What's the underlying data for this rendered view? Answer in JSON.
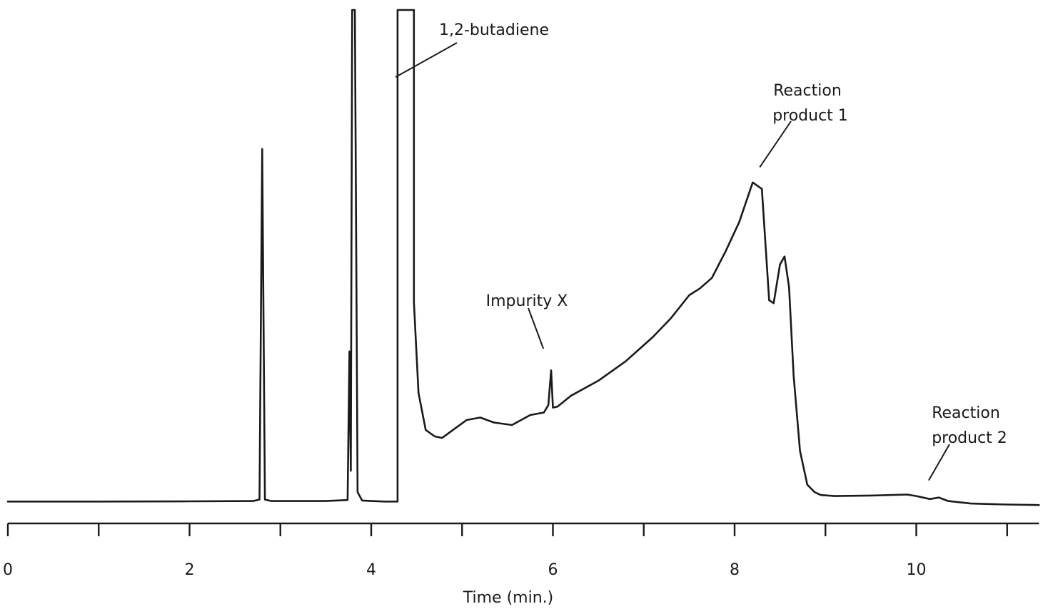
{
  "chart_data": {
    "type": "line",
    "title": "",
    "xlabel": "Time (min.)",
    "ylabel": "",
    "xlim": [
      0,
      11.35
    ],
    "ylim": [
      0,
      100
    ],
    "x_ticks_major": [
      0,
      2,
      4,
      6,
      8,
      10
    ],
    "x_ticks_minor": [
      1,
      3,
      5,
      7,
      9,
      11
    ],
    "grid": false,
    "series": [
      {
        "name": "",
        "x": [
          0,
          1,
          2,
          2.7,
          2.77,
          2.8,
          2.83,
          2.9,
          3.5,
          3.74,
          3.76,
          3.775,
          3.79,
          3.8,
          3.81,
          3.82,
          3.85,
          3.9,
          4.0,
          4.15,
          4.29,
          4.29,
          4.37,
          4.43,
          4.47,
          4.47,
          4.52,
          4.6,
          4.7,
          4.78,
          4.9,
          5.05,
          5.2,
          5.35,
          5.55,
          5.75,
          5.9,
          5.95,
          5.98,
          6.0,
          6.05,
          6.2,
          6.5,
          6.8,
          7.1,
          7.3,
          7.5,
          7.62,
          7.75,
          7.9,
          8.05,
          8.2,
          8.3,
          8.34,
          8.38,
          8.43,
          8.5,
          8.55,
          8.6,
          8.65,
          8.72,
          8.8,
          8.88,
          8.95,
          9.1,
          9.5,
          9.9,
          10.0,
          10.15,
          10.25,
          10.35,
          10.6,
          11.0,
          11.35
        ],
        "values": [
          0.1,
          0.1,
          0.15,
          0.2,
          0.5,
          71.0,
          0.5,
          0.2,
          0.2,
          0.4,
          30.3,
          6.3,
          99,
          99,
          99,
          99,
          2.0,
          0.3,
          0.2,
          0.1,
          0.1,
          99,
          99,
          99,
          99,
          40.2,
          22.0,
          14.5,
          13.2,
          12.9,
          14.5,
          16.5,
          17.0,
          16.0,
          15.5,
          17.5,
          18.0,
          19.5,
          26.5,
          19.0,
          19.2,
          21.4,
          24.4,
          28.3,
          33.2,
          37.0,
          41.6,
          43.0,
          45.1,
          50.4,
          56.3,
          64.3,
          63.0,
          51.8,
          40.6,
          40.0,
          47.8,
          49.4,
          43.2,
          25.4,
          10.3,
          3.5,
          2.0,
          1.4,
          1.2,
          1.3,
          1.5,
          1.2,
          0.6,
          0.9,
          0.2,
          -0.3,
          -0.5,
          -0.6
        ]
      }
    ],
    "annotations": [
      {
        "text": "1,2-butadiene",
        "x": 4.37,
        "y": 85.5
      },
      {
        "text": "Impurity X",
        "x": 5.95,
        "y": 29.0
      },
      {
        "text": "Reaction product 1",
        "x": 8.34,
        "y": 65.5
      },
      {
        "text": "Reaction product 2",
        "x": 10.2,
        "y": 2.5
      }
    ]
  }
}
